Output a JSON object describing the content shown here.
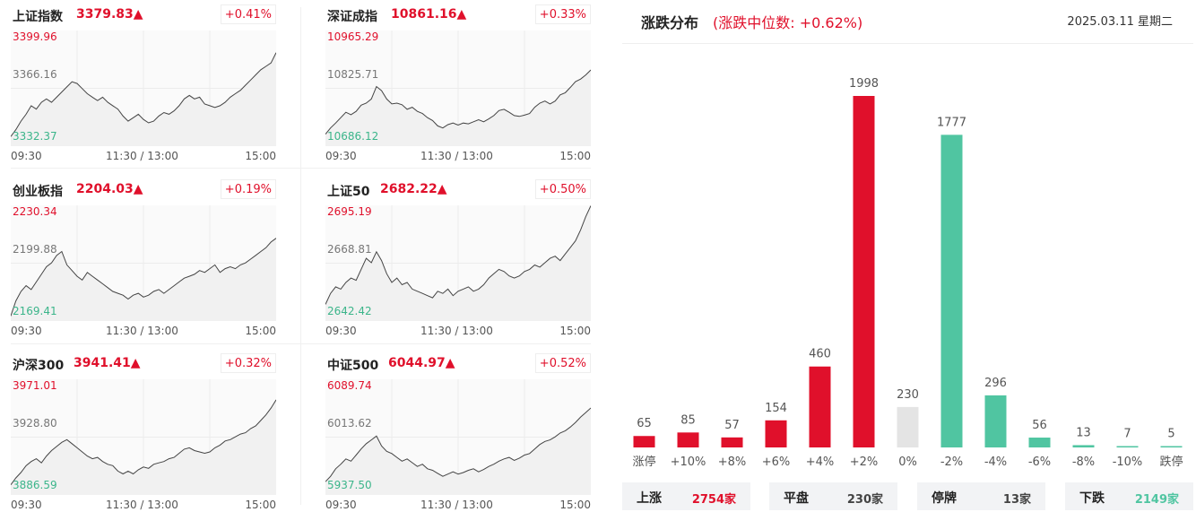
{
  "colors": {
    "up": "#e0102b",
    "down": "#50c5a1",
    "flat": "#e4e4e4",
    "line": "#444444"
  },
  "indices": [
    {
      "name": "上证指数",
      "price": "3379.83▲",
      "pct": "+0.41%",
      "y_high": "3399.96",
      "y_mid": "3366.16",
      "y_low": "3332.37",
      "x_labels": [
        "09:30",
        "11:30 / 13:00",
        "15:00"
      ],
      "series": [
        3338,
        3342,
        3347,
        3351,
        3356,
        3354,
        3358,
        3360,
        3358,
        3361,
        3364,
        3367,
        3370,
        3369,
        3366,
        3363,
        3361,
        3359,
        3361,
        3358,
        3356,
        3354,
        3350,
        3347,
        3349,
        3351,
        3348,
        3346,
        3347,
        3350,
        3352,
        3351,
        3353,
        3356,
        3360,
        3362,
        3360,
        3361,
        3357,
        3356,
        3355,
        3356,
        3358,
        3361,
        3363,
        3365,
        3368,
        3371,
        3374,
        3377,
        3379,
        3381,
        3387
      ]
    },
    {
      "name": "深证成指",
      "price": "10861.16▲",
      "pct": "+0.33%",
      "y_high": "10965.29",
      "y_mid": "10825.71",
      "y_low": "10686.12",
      "x_labels": [
        "09:30",
        "11:30 / 13:00",
        "15:00"
      ],
      "series": [
        10715,
        10730,
        10742,
        10755,
        10768,
        10762,
        10770,
        10785,
        10790,
        10800,
        10830,
        10820,
        10800,
        10788,
        10790,
        10786,
        10775,
        10780,
        10770,
        10765,
        10755,
        10748,
        10735,
        10730,
        10738,
        10742,
        10737,
        10742,
        10740,
        10745,
        10750,
        10745,
        10752,
        10760,
        10772,
        10775,
        10768,
        10760,
        10758,
        10761,
        10765,
        10780,
        10790,
        10795,
        10788,
        10795,
        10810,
        10815,
        10828,
        10842,
        10848,
        10858,
        10870
      ]
    },
    {
      "name": "创业板指",
      "price": "2204.03▲",
      "pct": "+0.19%",
      "y_high": "2230.34",
      "y_mid": "2199.88",
      "y_low": "2169.41",
      "x_labels": [
        "09:30",
        "11:30 / 13:00",
        "15:00"
      ],
      "series": [
        2172,
        2180,
        2185,
        2188,
        2186,
        2190,
        2194,
        2198,
        2200,
        2204,
        2206,
        2199,
        2196,
        2193,
        2191,
        2195,
        2193,
        2191,
        2189,
        2187,
        2185,
        2184,
        2183,
        2181,
        2183,
        2184,
        2182,
        2183,
        2185,
        2186,
        2184,
        2186,
        2188,
        2190,
        2192,
        2193,
        2194,
        2196,
        2195,
        2197,
        2199,
        2195,
        2197,
        2198,
        2197,
        2199,
        2200,
        2202,
        2204,
        2206,
        2208,
        2211,
        2213
      ]
    },
    {
      "name": "上证50",
      "price": "2682.22▲",
      "pct": "+0.50%",
      "y_high": "2695.19",
      "y_mid": "2668.81",
      "y_low": "2642.42",
      "x_labels": [
        "09:30",
        "11:30 / 13:00",
        "15:00"
      ],
      "series": [
        2650,
        2655,
        2658,
        2657,
        2660,
        2662,
        2661,
        2666,
        2671,
        2669,
        2674,
        2670,
        2664,
        2660,
        2662,
        2659,
        2660,
        2657,
        2656,
        2655,
        2654,
        2653,
        2656,
        2655,
        2657,
        2654,
        2656,
        2657,
        2658,
        2656,
        2657,
        2659,
        2662,
        2664,
        2666,
        2665,
        2663,
        2662,
        2663,
        2665,
        2666,
        2668,
        2667,
        2669,
        2671,
        2672,
        2670,
        2673,
        2676,
        2679,
        2684,
        2690,
        2695
      ]
    },
    {
      "name": "沪深300",
      "price": "3941.41▲",
      "pct": "+0.32%",
      "y_high": "3971.01",
      "y_mid": "3928.80",
      "y_low": "3886.59",
      "x_labels": [
        "09:30",
        "11:30 / 13:00",
        "15:00"
      ],
      "series": [
        3894,
        3899,
        3903,
        3908,
        3911,
        3913,
        3910,
        3915,
        3919,
        3922,
        3925,
        3927,
        3924,
        3921,
        3918,
        3915,
        3913,
        3914,
        3911,
        3909,
        3908,
        3904,
        3902,
        3904,
        3902,
        3905,
        3907,
        3906,
        3909,
        3910,
        3911,
        3913,
        3914,
        3917,
        3920,
        3921,
        3919,
        3918,
        3917,
        3918,
        3921,
        3923,
        3926,
        3927,
        3929,
        3931,
        3932,
        3935,
        3937,
        3941,
        3945,
        3950,
        3956
      ]
    },
    {
      "name": "中证500",
      "price": "6044.97▲",
      "pct": "+0.52%",
      "y_high": "6089.74",
      "y_mid": "6013.62",
      "y_low": "5937.50",
      "x_labels": [
        "09:30",
        "11:30 / 13:00",
        "15:00"
      ],
      "series": [
        5955,
        5962,
        5972,
        5978,
        5985,
        5982,
        5990,
        5998,
        6005,
        6010,
        6015,
        6002,
        5995,
        5992,
        5987,
        5982,
        5985,
        5980,
        5975,
        5978,
        5972,
        5970,
        5966,
        5962,
        5965,
        5968,
        5965,
        5967,
        5970,
        5972,
        5968,
        5971,
        5975,
        5978,
        5982,
        5985,
        5987,
        5983,
        5986,
        5990,
        5992,
        5998,
        6004,
        6008,
        6010,
        6014,
        6019,
        6022,
        6027,
        6033,
        6040,
        6046,
        6052
      ]
    }
  ],
  "distribution": {
    "title": "涨跌分布",
    "median": "(涨跌中位数: +0.62%)",
    "date": "2025.03.11 星期二",
    "summary": [
      {
        "label": "上涨",
        "value": "2754家",
        "color": "#e0102b"
      },
      {
        "label": "平盘",
        "value": "230家",
        "color": "#444444"
      },
      {
        "label": "停牌",
        "value": "13家",
        "color": "#444444"
      },
      {
        "label": "下跌",
        "value": "2149家",
        "color": "#50c5a1"
      }
    ]
  },
  "chart_data": {
    "type": "bar",
    "categories": [
      "涨停",
      "+10%",
      "+8%",
      "+6%",
      "+4%",
      "+2%",
      "0%",
      "-2%",
      "-4%",
      "-6%",
      "-8%",
      "-10%",
      "跌停"
    ],
    "values": [
      65,
      85,
      57,
      154,
      460,
      1998,
      230,
      1777,
      296,
      56,
      13,
      7,
      5
    ],
    "value_labels": [
      "65",
      "85",
      "57",
      "154",
      "460",
      "1998",
      "230",
      "1777",
      "296",
      "56",
      "13",
      "7",
      "5"
    ],
    "bar_colors": [
      "up",
      "up",
      "up",
      "up",
      "up",
      "up",
      "flat",
      "down",
      "down",
      "down",
      "down",
      "down",
      "down"
    ],
    "title": "",
    "xlabel": "",
    "ylabel": "",
    "ylim": [
      0,
      1998
    ],
    "grid": false
  }
}
